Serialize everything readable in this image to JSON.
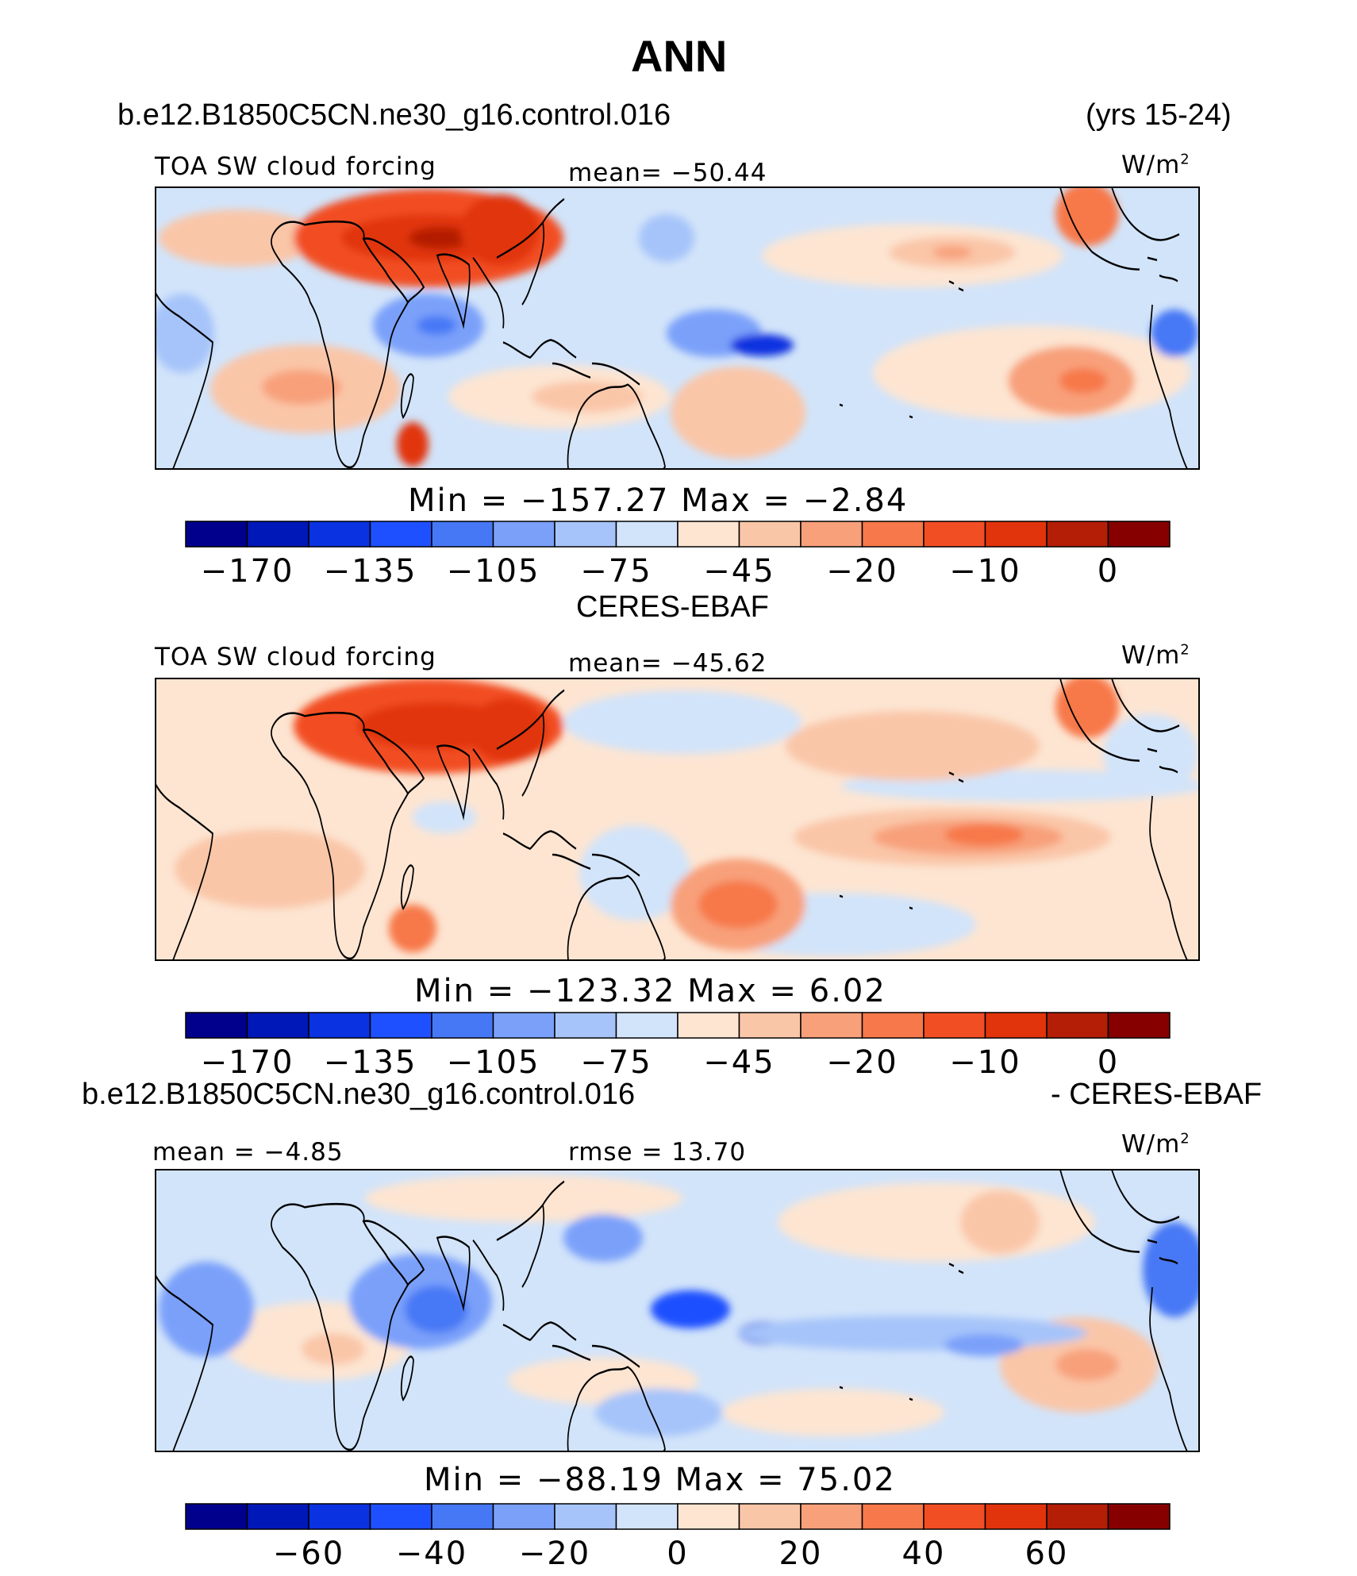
{
  "figure": {
    "title": "ANN",
    "case_name": "b.e12.B1850C5CN.ne30_g16.control.016",
    "years": "(yrs 15-24)",
    "obs_name": "CERES-EBAF",
    "diff_case_name": "b.e12.B1850C5CN.ne30_g16.control.016",
    "diff_obs_name": "- CERES-EBAF"
  },
  "panels": [
    {
      "variable": "TOA SW cloud forcing",
      "stat_label": "mean=  −50.44",
      "units": "W/m",
      "units_sup": "2",
      "minmax": "Min  =  −157.27  Max  =   −2.84"
    },
    {
      "variable": "TOA SW cloud forcing",
      "stat_label": "mean=  −45.62",
      "units": "W/m",
      "units_sup": "2",
      "minmax": "Min  =  −123.32  Max  =     6.02"
    },
    {
      "variable": "mean  =   −4.85",
      "stat_label": "rmse  =   13.70",
      "units": "W/m",
      "units_sup": "2",
      "minmax": "Min  =  −88.19  Max  =   75.02"
    }
  ],
  "colorbars": {
    "main_colors": [
      "#00008c",
      "#0018b8",
      "#0a32e0",
      "#1e50ff",
      "#4678f5",
      "#7aa0fa",
      "#a6c4fa",
      "#d2e4fa",
      "#fde5d2",
      "#fac6a8",
      "#f8a07a",
      "#f7784a",
      "#f24e24",
      "#e1340c",
      "#b41e06",
      "#870000"
    ],
    "main_ticks": [
      "−170",
      "−135",
      "−105",
      "−75",
      "−45",
      "−20",
      "−10",
      "0"
    ],
    "diff_ticks": [
      "−60",
      "−40",
      "−20",
      "0",
      "20",
      "40",
      "60"
    ]
  },
  "chart_data": [
    {
      "type": "heatmap",
      "title": "TOA SW cloud forcing",
      "case": "b.e12.B1850C5CN.ne30_g16.control.016",
      "mean": -50.44,
      "min": -157.27,
      "max": -2.84,
      "units": "W/m2",
      "contour_levels": [
        -170,
        -150,
        -135,
        -120,
        -105,
        -90,
        -75,
        -60,
        -45,
        -30,
        -20,
        -15,
        -10,
        -5,
        0
      ],
      "colorbar_labels": [
        -170,
        -135,
        -105,
        -75,
        -45,
        -20,
        -10,
        0
      ]
    },
    {
      "type": "heatmap",
      "title": "TOA SW cloud forcing",
      "case": "CERES-EBAF",
      "mean": -45.62,
      "min": -123.32,
      "max": 6.02,
      "units": "W/m2",
      "contour_levels": [
        -170,
        -150,
        -135,
        -120,
        -105,
        -90,
        -75,
        -60,
        -45,
        -30,
        -20,
        -15,
        -10,
        -5,
        0
      ],
      "colorbar_labels": [
        -170,
        -135,
        -105,
        -75,
        -45,
        -20,
        -10,
        0
      ]
    },
    {
      "type": "heatmap",
      "case": "b.e12.B1850C5CN.ne30_g16.control.016 - CERES-EBAF",
      "mean": -4.85,
      "rmse": 13.7,
      "min": -88.19,
      "max": 75.02,
      "units": "W/m2",
      "contour_levels": [
        -70,
        -60,
        -50,
        -40,
        -30,
        -20,
        -10,
        0,
        10,
        20,
        30,
        40,
        50,
        60,
        70
      ],
      "colorbar_labels": [
        -60,
        -40,
        -20,
        0,
        20,
        40,
        60
      ]
    }
  ]
}
